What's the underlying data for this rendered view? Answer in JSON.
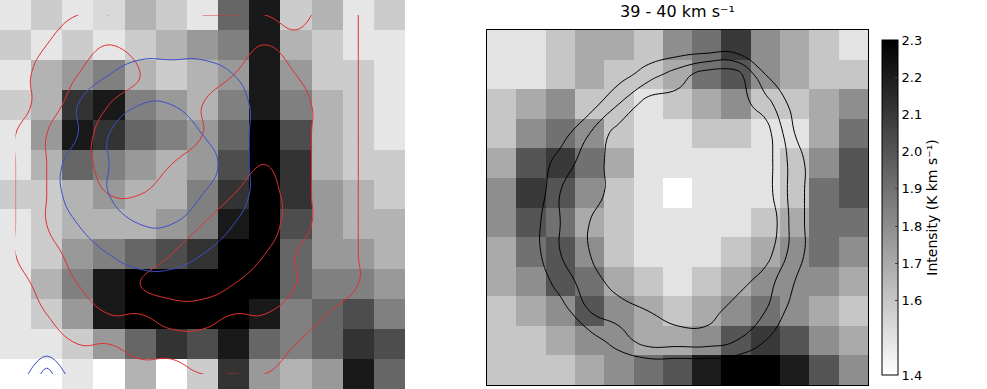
{
  "chart_data": [
    {
      "type": "heatmap",
      "tick_labels": false,
      "xlim": [
        -0.5,
        12.5
      ],
      "ylim": [
        12.5,
        -0.5
      ],
      "zlim": [
        0,
        1
      ],
      "cells": [
        [
          0.1,
          0.2,
          0.1,
          0.15,
          0.3,
          0.2,
          0.1,
          0.6,
          0.9,
          0.2,
          0.3,
          0.1,
          0.2
        ],
        [
          0.2,
          0.1,
          0.2,
          0.1,
          0.2,
          0.3,
          0.4,
          0.5,
          0.9,
          0.3,
          0.2,
          0.1,
          0.1
        ],
        [
          0.1,
          0.3,
          0.4,
          0.5,
          0.3,
          0.2,
          0.3,
          0.4,
          0.9,
          0.4,
          0.2,
          0.2,
          0.1
        ],
        [
          0.2,
          0.3,
          0.8,
          0.9,
          0.5,
          0.4,
          0.3,
          0.5,
          0.9,
          0.5,
          0.3,
          0.2,
          0.1
        ],
        [
          0.1,
          0.4,
          0.9,
          0.8,
          0.6,
          0.5,
          0.4,
          0.6,
          1.0,
          0.7,
          0.3,
          0.2,
          0.1
        ],
        [
          0.1,
          0.3,
          0.6,
          0.5,
          0.4,
          0.3,
          0.4,
          0.7,
          1.0,
          0.8,
          0.3,
          0.2,
          0.2
        ],
        [
          0.2,
          0.2,
          0.3,
          0.4,
          0.3,
          0.3,
          0.5,
          0.8,
          1.0,
          0.8,
          0.4,
          0.3,
          0.2
        ],
        [
          0.1,
          0.2,
          0.3,
          0.3,
          0.3,
          0.4,
          0.5,
          0.9,
          1.0,
          0.7,
          0.4,
          0.3,
          0.3
        ],
        [
          0.1,
          0.2,
          0.4,
          0.5,
          0.6,
          0.7,
          0.8,
          1.0,
          1.0,
          0.6,
          0.4,
          0.4,
          0.3
        ],
        [
          0.1,
          0.3,
          0.5,
          0.9,
          1.0,
          1.0,
          1.0,
          1.0,
          1.0,
          0.6,
          0.5,
          0.5,
          0.4
        ],
        [
          0.1,
          0.2,
          0.4,
          0.9,
          1.0,
          1.0,
          1.0,
          1.0,
          0.9,
          0.5,
          0.6,
          0.7,
          0.5
        ],
        [
          0.1,
          0.1,
          0.2,
          0.4,
          0.6,
          0.8,
          0.7,
          0.9,
          0.6,
          0.5,
          0.6,
          0.8,
          0.7
        ],
        [
          0.0,
          0.0,
          0.1,
          0.0,
          0.3,
          0.0,
          0.2,
          0.8,
          0.4,
          0.3,
          0.4,
          0.9,
          0.6
        ]
      ],
      "contours": [
        {
          "color": "#e03030",
          "levels": [
            1,
            2,
            3
          ],
          "cells": [
            [
              0,
              0,
              1,
              1,
              1.5,
              1.5,
              1,
              1,
              1,
              0.5,
              1.5,
              1,
              0.5
            ],
            [
              0,
              1,
              1.5,
              2,
              2,
              1.5,
              1.5,
              1.5,
              2,
              1.5,
              1.5,
              1,
              0.5
            ],
            [
              0.5,
              1.5,
              2,
              2.5,
              2,
              1.5,
              1.5,
              2,
              2.5,
              2,
              1.5,
              1,
              0.5
            ],
            [
              0.5,
              1.5,
              2.5,
              2,
              1.5,
              1.5,
              2,
              2.5,
              2.5,
              2.5,
              1.5,
              1,
              0.5
            ],
            [
              1,
              2,
              2.5,
              1.5,
              1.5,
              2,
              2,
              2.5,
              3,
              2.5,
              1.5,
              1,
              0.5
            ],
            [
              1,
              2,
              2.5,
              1.5,
              2,
              2,
              2.5,
              3,
              3,
              2.5,
              1.5,
              1,
              0.5
            ],
            [
              1,
              2,
              2.5,
              2,
              2,
              2.5,
              3,
              3,
              3.5,
              2.5,
              1.5,
              1,
              0.5
            ],
            [
              1,
              2,
              2.5,
              2.5,
              2.5,
              3,
              3,
              3.5,
              3.5,
              2.5,
              1.5,
              1,
              0.5
            ],
            [
              1,
              1.5,
              2.5,
              3,
              3,
              3,
              3.5,
              3.5,
              3,
              2,
              1.5,
              1,
              0.5
            ],
            [
              0.5,
              1.5,
              2,
              2.5,
              3,
              3.5,
              3.5,
              3,
              2.5,
              2,
              1.5,
              1,
              0.5
            ],
            [
              0.5,
              1,
              1.5,
              2,
              2,
              2.5,
              2.5,
              2,
              2,
              1.5,
              1,
              1,
              0.5
            ],
            [
              0,
              0.5,
              1,
              1,
              1.5,
              1.5,
              1.5,
              1.5,
              1.5,
              1,
              1,
              0.5,
              0.5
            ],
            [
              0,
              0,
              0.5,
              0.5,
              0.5,
              0.5,
              1,
              1,
              1,
              0.5,
              0.5,
              0.5,
              0
            ]
          ]
        },
        {
          "color": "#3f4fc8",
          "levels": [
            1,
            2
          ],
          "cells": [
            [
              0,
              0,
              0,
              0,
              0,
              0,
              0,
              0,
              0,
              0,
              0,
              0,
              0
            ],
            [
              0,
              0,
              0,
              0.5,
              0.5,
              0.5,
              0.5,
              0,
              0,
              0,
              0,
              0,
              0
            ],
            [
              0,
              0,
              0.5,
              1,
              1.5,
              1.5,
              1.5,
              1,
              0,
              0,
              0,
              0,
              0
            ],
            [
              0,
              0,
              1,
              1.5,
              2,
              2,
              2,
              1.5,
              0.5,
              0,
              0,
              0,
              0
            ],
            [
              0,
              0.5,
              1,
              2,
              2.5,
              2.5,
              2,
              1.5,
              0.5,
              0,
              0,
              0,
              0
            ],
            [
              0,
              0.5,
              1.5,
              2,
              2.5,
              2.5,
              2.5,
              1.5,
              0.5,
              0,
              0,
              0,
              0
            ],
            [
              0,
              0.5,
              1.5,
              2,
              2.5,
              2.5,
              2,
              1.5,
              0.5,
              0,
              0,
              0,
              0
            ],
            [
              0,
              0,
              1,
              1.5,
              2,
              2,
              1.5,
              1,
              0,
              0,
              0,
              0,
              0
            ],
            [
              0,
              0,
              0.5,
              1,
              1.5,
              1.5,
              1,
              0.5,
              0,
              0,
              0,
              0,
              0
            ],
            [
              0,
              0,
              0,
              0.5,
              0.5,
              0.5,
              0.5,
              0,
              0,
              0,
              0,
              0,
              0
            ],
            [
              0,
              0,
              0,
              0,
              0,
              0,
              0,
              0,
              0,
              0,
              0,
              0,
              0
            ],
            [
              0,
              0,
              0,
              0,
              0,
              0,
              0,
              0,
              0,
              0,
              0,
              0,
              0
            ],
            [
              0,
              2.5,
              0,
              0,
              0,
              0,
              0,
              0,
              0,
              0,
              0,
              0,
              0
            ]
          ]
        }
      ]
    },
    {
      "type": "heatmap",
      "title": "39 - 40 km s⁻¹",
      "tick_labels": false,
      "xlim": [
        -0.5,
        12.5
      ],
      "ylim": [
        11.5,
        -0.5
      ],
      "zlim": [
        1.4,
        2.3
      ],
      "colorbar": {
        "title": "Intensity (K km s⁻¹)",
        "ticks": [
          1.4,
          1.6,
          1.7,
          1.8,
          1.9,
          {
            "value": 2,
            "label": "2.0"
          },
          2.1,
          2.2,
          2.3
        ]
      },
      "cells": [
        [
          1.5,
          1.5,
          1.6,
          1.7,
          1.7,
          1.6,
          1.8,
          1.9,
          2.1,
          1.8,
          1.7,
          1.6,
          1.5
        ],
        [
          1.5,
          1.5,
          1.6,
          1.7,
          1.6,
          1.6,
          1.7,
          1.9,
          2.0,
          1.8,
          1.7,
          1.6,
          1.6
        ],
        [
          1.6,
          1.7,
          1.8,
          1.6,
          1.6,
          1.5,
          1.6,
          1.7,
          1.8,
          1.6,
          1.6,
          1.7,
          1.8
        ],
        [
          1.6,
          1.8,
          1.9,
          1.8,
          1.6,
          1.5,
          1.5,
          1.6,
          1.6,
          1.5,
          1.5,
          1.7,
          1.9
        ],
        [
          1.7,
          2.0,
          2.1,
          1.9,
          1.7,
          1.5,
          1.5,
          1.5,
          1.5,
          1.5,
          1.6,
          1.8,
          2.0
        ],
        [
          1.8,
          2.1,
          2.0,
          1.8,
          1.6,
          1.5,
          1.4,
          1.5,
          1.5,
          1.5,
          1.6,
          1.9,
          2.0
        ],
        [
          1.8,
          2.0,
          1.9,
          1.7,
          1.6,
          1.5,
          1.5,
          1.5,
          1.5,
          1.6,
          1.7,
          1.9,
          1.9
        ],
        [
          1.7,
          1.9,
          2.0,
          1.8,
          1.6,
          1.5,
          1.5,
          1.5,
          1.6,
          1.7,
          1.8,
          1.9,
          1.8
        ],
        [
          1.7,
          1.8,
          2.0,
          1.9,
          1.7,
          1.6,
          1.5,
          1.6,
          1.7,
          1.8,
          1.8,
          1.8,
          1.7
        ],
        [
          1.6,
          1.7,
          1.8,
          2.0,
          1.8,
          1.7,
          1.6,
          1.7,
          1.8,
          1.9,
          1.8,
          1.7,
          1.6
        ],
        [
          1.6,
          1.6,
          1.7,
          1.8,
          1.8,
          1.7,
          1.7,
          1.8,
          2.0,
          2.1,
          2.0,
          1.8,
          1.7
        ],
        [
          1.6,
          1.6,
          1.6,
          1.7,
          1.8,
          1.9,
          2.0,
          2.2,
          2.3,
          2.3,
          2.2,
          2.0,
          1.8
        ]
      ],
      "contours": [
        {
          "color": "#000000",
          "levels": [
            1,
            2,
            3
          ],
          "cells": [
            [
              0,
              0,
              0,
              0,
              0,
              0,
              0,
              0,
              0,
              0,
              0,
              0,
              0
            ],
            [
              0,
              0,
              0,
              0,
              0.5,
              1.5,
              2.5,
              3.5,
              3.5,
              1,
              0,
              0,
              0
            ],
            [
              0,
              0,
              0,
              0.5,
              2,
              3.5,
              3.5,
              3.5,
              3.5,
              2.5,
              0.5,
              0,
              0
            ],
            [
              0,
              0,
              0.5,
              2,
              3.5,
              3.5,
              4,
              3.5,
              3.5,
              3.5,
              1,
              0,
              0
            ],
            [
              0,
              0,
              1.5,
              2.5,
              3.5,
              3.5,
              3.5,
              3.5,
              3.5,
              3.5,
              1.5,
              0,
              0
            ],
            [
              0,
              0,
              2,
              2.5,
              3.5,
              3.5,
              3.5,
              3.5,
              3.5,
              3.5,
              1.5,
              0,
              0
            ],
            [
              0,
              0.5,
              2,
              3,
              3.5,
              3.5,
              3.5,
              3.5,
              4,
              4,
              1.5,
              0,
              0
            ],
            [
              0,
              0.5,
              2,
              3,
              3.5,
              3.5,
              3.5,
              3.5,
              3.5,
              3.5,
              1.5,
              0,
              0
            ],
            [
              0,
              0,
              1.5,
              2.5,
              3.5,
              3.5,
              3.5,
              3.5,
              3.5,
              2.5,
              1,
              0,
              0
            ],
            [
              0,
              0,
              0.5,
              2,
              2.5,
              3,
              3.5,
              3.5,
              2.5,
              2,
              0.5,
              0,
              0
            ],
            [
              0,
              0,
              0,
              0.5,
              1.5,
              2.5,
              2.5,
              2.5,
              2,
              1,
              0,
              0,
              0
            ],
            [
              0,
              0,
              0,
              0,
              0,
              0,
              0,
              0,
              0,
              0,
              0,
              0,
              0
            ]
          ]
        }
      ]
    }
  ]
}
